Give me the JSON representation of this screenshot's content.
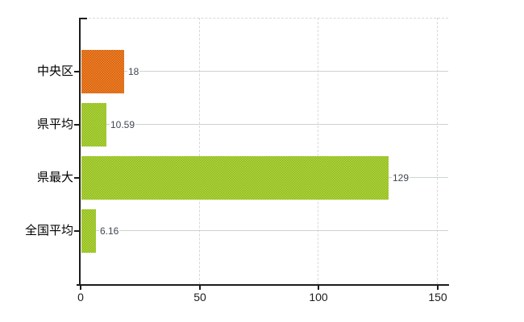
{
  "chart_data": {
    "type": "bar",
    "orientation": "horizontal",
    "title": "",
    "xlabel": "",
    "ylabel": "",
    "xlim": [
      0,
      150
    ],
    "x_ticks": [
      0,
      50,
      100,
      150
    ],
    "x_tick_labels": [
      "0",
      "50",
      "100",
      "150"
    ],
    "grid": true,
    "legend": "none",
    "categories": [
      "中央区",
      "県平均",
      "県最大",
      "全国平均"
    ],
    "values": [
      18,
      10.59,
      129,
      6.16
    ],
    "bars": [
      {
        "category": "中央区",
        "value": 18,
        "value_label": "18",
        "color_base": "#ef8a1d",
        "color_dot": "#d65a1d"
      },
      {
        "category": "県平均",
        "value": 10.59,
        "value_label": "10.59",
        "color_base": "#b5d538",
        "color_dot": "#8cba28"
      },
      {
        "category": "県最大",
        "value": 129,
        "value_label": "129",
        "color_base": "#b5d538",
        "color_dot": "#8cba28"
      },
      {
        "category": "全国平均",
        "value": 6.16,
        "value_label": "6.16",
        "color_base": "#b5d538",
        "color_dot": "#8cba28"
      }
    ]
  },
  "colors": {
    "background": "#ffffff",
    "axis": "#1c1c1c",
    "vertical_gridline": "#d8d8d8",
    "category_gridline": "#ccd4cc",
    "category_text": "#000000",
    "value_text": "#3f4650",
    "tick_text": "#1c1c1c"
  }
}
